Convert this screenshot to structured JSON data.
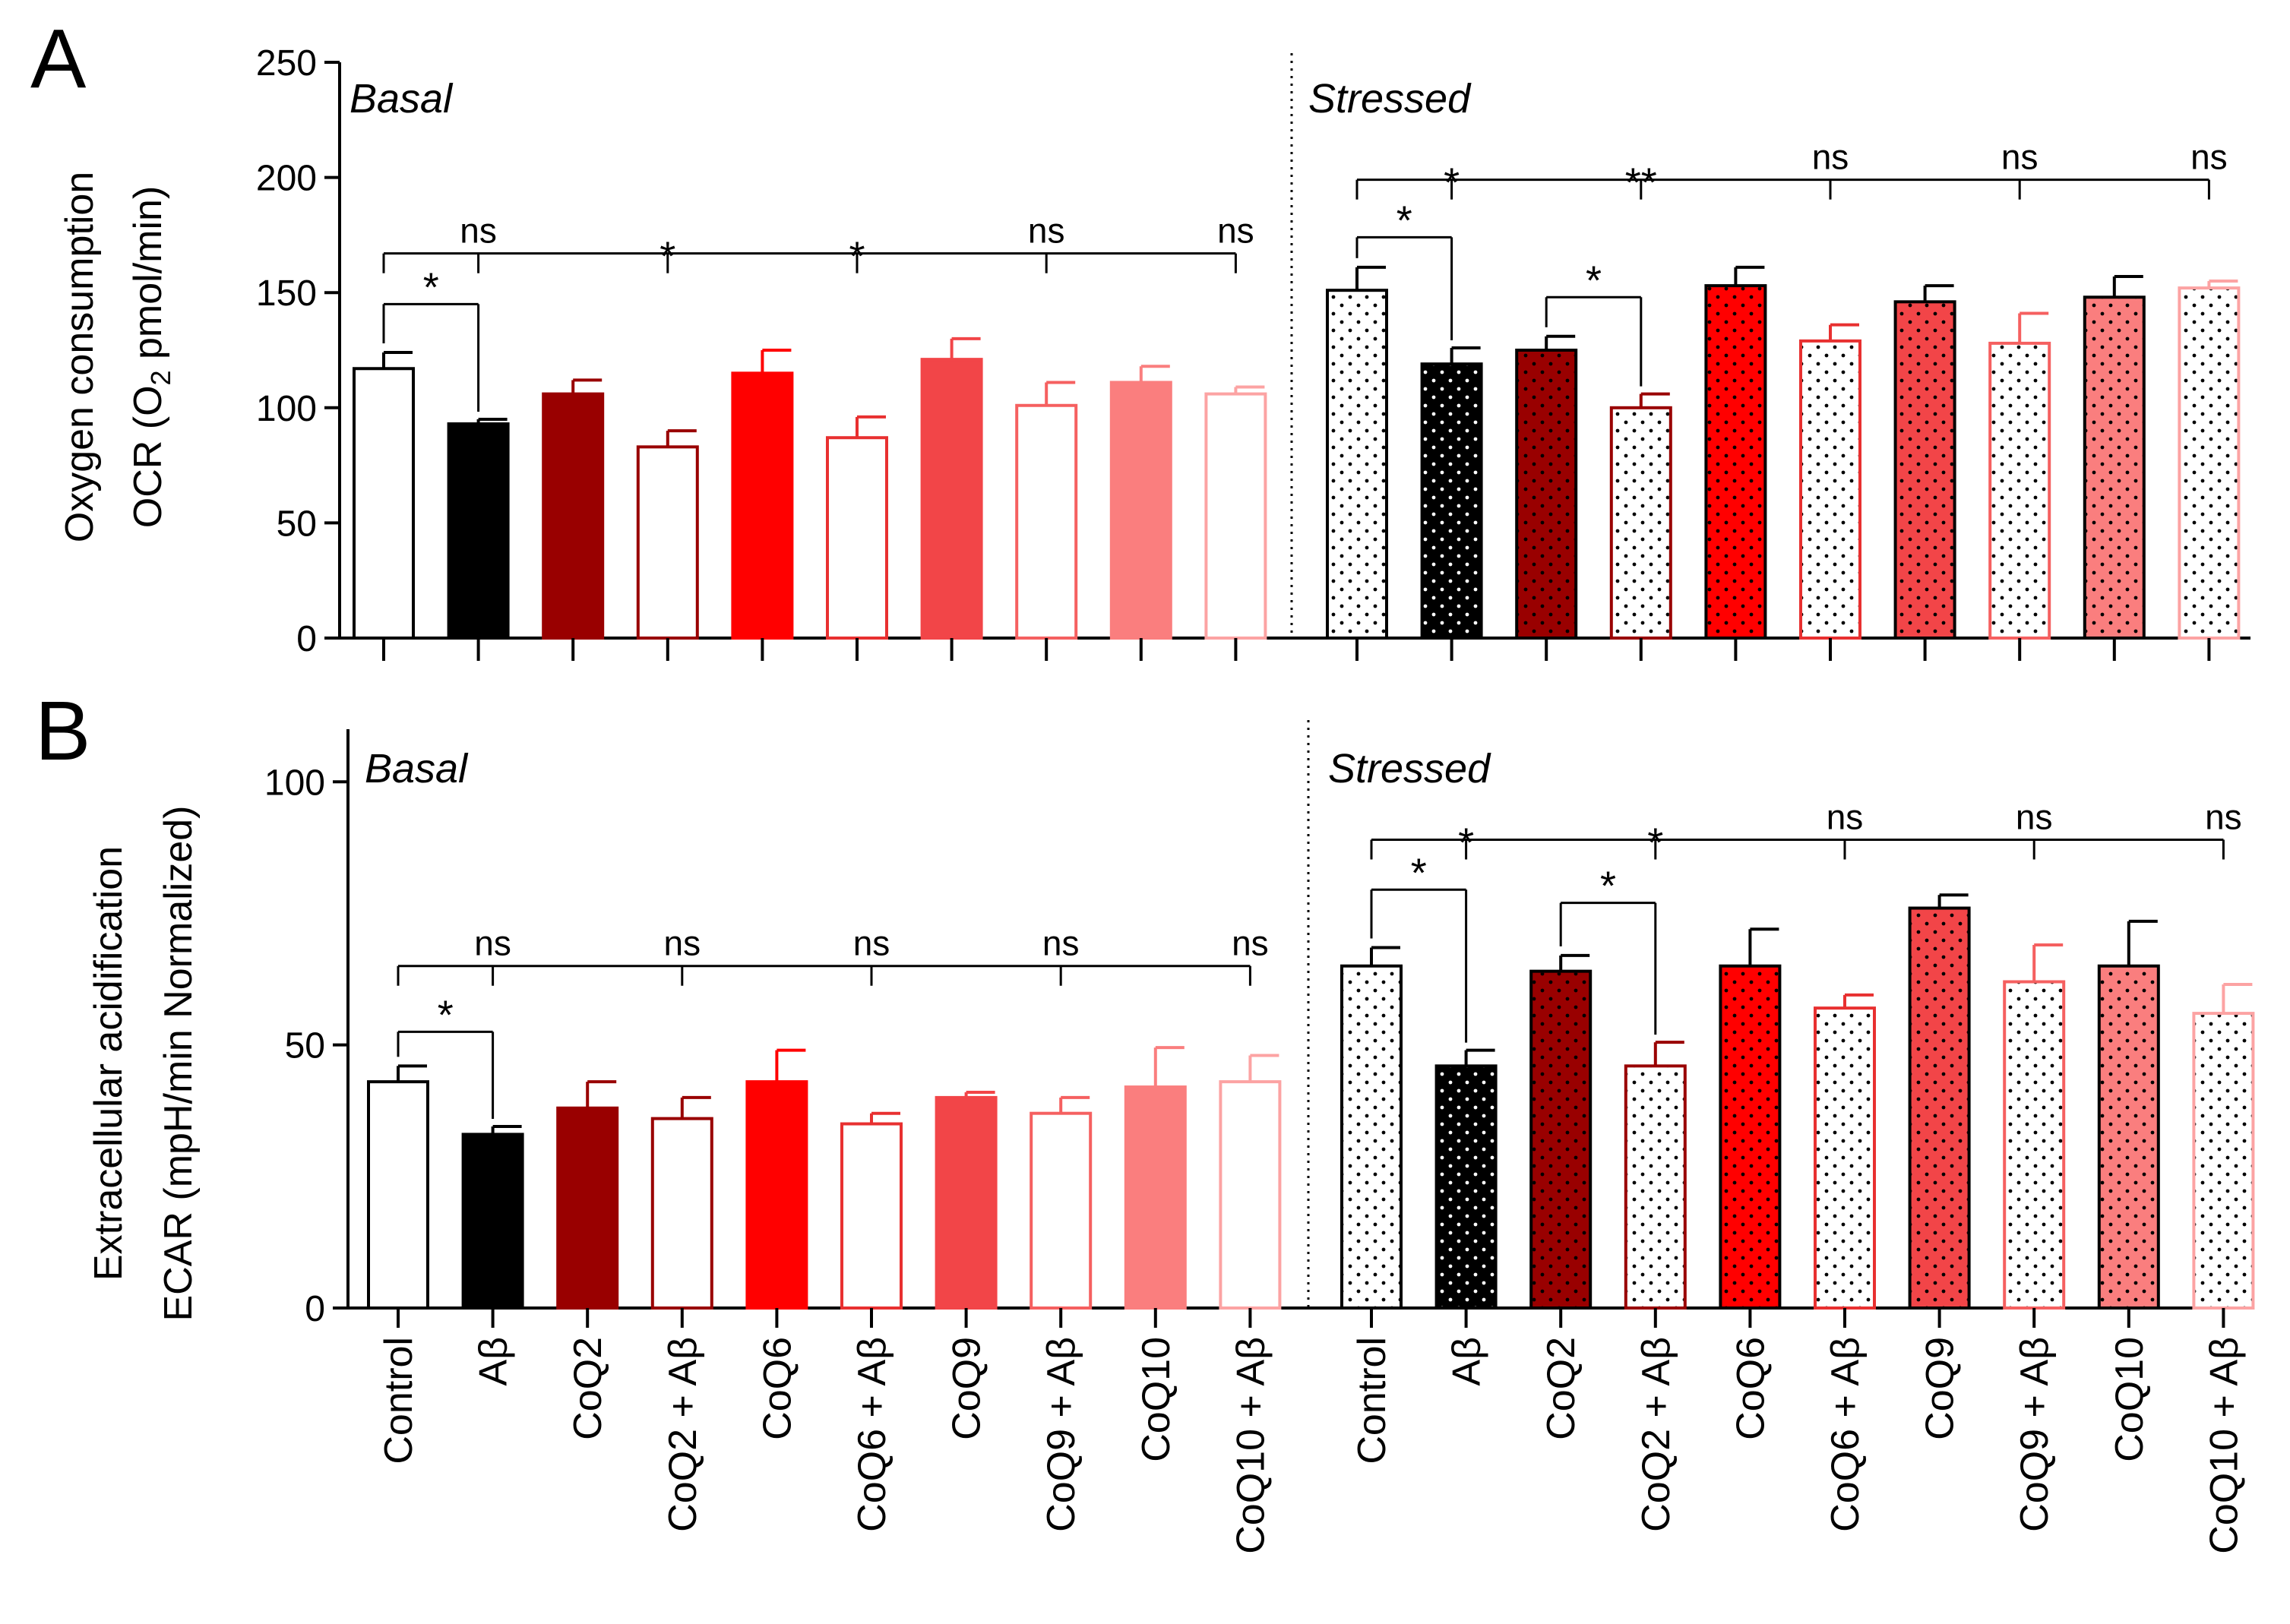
{
  "chart_data": [
    {
      "type": "bar",
      "panel_letter": "A",
      "ylabel_line1": "Oxygen consumption",
      "ylabel_line2_pre": "OCR (O",
      "ylabel_line2_sub": "2",
      "ylabel_line2_post": " pmol/min)",
      "ylim": [
        0,
        250
      ],
      "yticks": [
        0,
        50,
        100,
        150,
        200,
        250
      ],
      "tick_labels": [
        "0",
        "50",
        "100",
        "150",
        "200",
        "250"
      ],
      "groups": [
        {
          "name": "Basal",
          "values": [
            117,
            93,
            106,
            83,
            115,
            87,
            121,
            101,
            111,
            106
          ],
          "errors": [
            7,
            2,
            6,
            7,
            10,
            9,
            9,
            10,
            7,
            3
          ],
          "significance": {
            "ref_line_y": 167,
            "brackets": [
              {
                "from": 0,
                "to": 1,
                "y": 145,
                "label": "*"
              }
            ],
            "labels": [
              "ns",
              "*",
              "*",
              "ns",
              "ns"
            ]
          }
        },
        {
          "name": "Stressed",
          "values": [
            151,
            119,
            125,
            100,
            153,
            129,
            146,
            128,
            148,
            152
          ],
          "errors": [
            10,
            7,
            6,
            6,
            8,
            7,
            7,
            13,
            9,
            3
          ],
          "significance": {
            "ref_line_y": 199,
            "brackets": [
              {
                "from": 0,
                "to": 1,
                "y": 174,
                "label": "*"
              },
              {
                "from": 2,
                "to": 3,
                "y": 148,
                "label": "*"
              }
            ],
            "labels": [
              "*",
              "**",
              "ns",
              "ns",
              "ns"
            ]
          }
        }
      ]
    },
    {
      "type": "bar",
      "panel_letter": "B",
      "ylabel_line1": "Extracellular acidification",
      "ylabel_line2": "ECAR (mpH/min Normalized)",
      "ylim": [
        0,
        110
      ],
      "yticks": [
        0,
        50,
        100
      ],
      "tick_labels": [
        "0",
        "50",
        "100"
      ],
      "groups": [
        {
          "name": "Basal",
          "values": [
            43,
            33,
            38,
            36,
            43,
            35,
            40,
            37,
            42,
            43
          ],
          "errors": [
            3,
            1.5,
            5,
            4,
            6,
            2,
            1,
            3,
            7.5,
            5
          ],
          "significance": {
            "ref_line_y": 65,
            "brackets": [
              {
                "from": 0,
                "to": 1,
                "y": 52.5,
                "label": "*"
              }
            ],
            "labels": [
              "ns",
              "ns",
              "ns",
              "ns",
              "ns"
            ]
          }
        },
        {
          "name": "Stressed",
          "values": [
            65,
            46,
            64,
            46,
            65,
            57,
            76,
            62,
            65,
            56
          ],
          "errors": [
            3.5,
            3,
            3,
            4.5,
            7,
            2.5,
            2.5,
            7,
            8.5,
            5.5
          ],
          "significance": {
            "ref_line_y": 89,
            "brackets": [
              {
                "from": 0,
                "to": 1,
                "y": 79.5,
                "label": "*"
              },
              {
                "from": 2,
                "to": 3,
                "y": 77,
                "label": "*"
              }
            ],
            "labels": [
              "*",
              "*",
              "ns",
              "ns",
              "ns"
            ]
          }
        }
      ]
    }
  ],
  "categories": [
    "Control",
    "Aβ",
    "CoQ2",
    "CoQ2 + Aβ",
    "CoQ6",
    "CoQ6 + Aβ",
    "CoQ9",
    "CoQ9 + Aβ",
    "CoQ10",
    "CoQ10 + Aβ"
  ],
  "colors": {
    "control": "#ffffff",
    "abeta": "#000000",
    "coq2": "#990000",
    "coq2_ab": "#990000",
    "coq6": "#ff0000",
    "coq6_ab": "#e83030",
    "coq9": "#f24548",
    "coq9_ab": "#f56060",
    "coq10": "#fa7e7e",
    "coq10_ab": "#fca3a3",
    "dots_light": "#ffffff",
    "dots_dark": "#000000"
  }
}
